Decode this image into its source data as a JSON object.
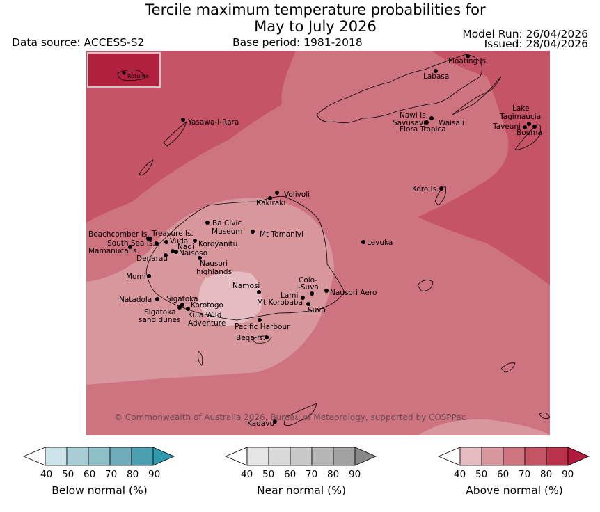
{
  "title_line1": "Tercile maximum temperature probabilities for",
  "title_line2": "May to July 2026",
  "data_source": "Data source: ACCESS-S2",
  "base_period": "Base period: 1981-2018",
  "model_run": "Model Run: 26/04/2026",
  "issued": "Issued: 28/04/2026",
  "copyright": "© Commonwealth of Australia 2026, Bureau of Meteorology, supported by COSPPac",
  "inset_label": "Rotuma",
  "places": [
    {
      "name": "Floating Is."
    },
    {
      "name": "Labasa"
    },
    {
      "name": "Yasawa-I-Rara"
    },
    {
      "name": "Nawi Is."
    },
    {
      "name": "Savusavu"
    },
    {
      "name": "Waisali"
    },
    {
      "name": "Flora Tropica"
    },
    {
      "name": "Lake"
    },
    {
      "name": "Tagimaucia"
    },
    {
      "name": "Taveuni"
    },
    {
      "name": "Bouma"
    },
    {
      "name": "Koro Is."
    },
    {
      "name": "Volivoli"
    },
    {
      "name": "Rakiraki"
    },
    {
      "name": "Ba Civic"
    },
    {
      "name": "Museum"
    },
    {
      "name": "Mt Tomanivi"
    },
    {
      "name": "Beachcomber Is."
    },
    {
      "name": "Treasure Is."
    },
    {
      "name": "South Sea Is."
    },
    {
      "name": "Vuda"
    },
    {
      "name": "Koroyanitu"
    },
    {
      "name": "Levuka"
    },
    {
      "name": "Nadi"
    },
    {
      "name": "Mamanuca Is."
    },
    {
      "name": "Naisoso"
    },
    {
      "name": "Denarau"
    },
    {
      "name": "Nausori"
    },
    {
      "name": "highlands"
    },
    {
      "name": "Momi"
    },
    {
      "name": "Namosi"
    },
    {
      "name": "Colo-"
    },
    {
      "name": "I-Suva"
    },
    {
      "name": "Lami"
    },
    {
      "name": "Nausori Aero"
    },
    {
      "name": "Natadola"
    },
    {
      "name": "Sigatoka"
    },
    {
      "name": "Mt Korobaba"
    },
    {
      "name": "Korotogo"
    },
    {
      "name": "Suva"
    },
    {
      "name": "Sigatoka"
    },
    {
      "name": "Kula Wild"
    },
    {
      "name": "sand dunes"
    },
    {
      "name": "Adventure"
    },
    {
      "name": "Pacific Harbour"
    },
    {
      "name": "Beqa Is."
    },
    {
      "name": "Kadavu"
    }
  ],
  "colorbars": [
    {
      "label": "Below normal (%)",
      "ticks": [
        "40",
        "50",
        "60",
        "70",
        "80",
        "90"
      ],
      "colors": [
        "#cde3ea",
        "#a8cdd4",
        "#8ebec6",
        "#6eacb7",
        "#4aa0b2",
        "#2f9aae"
      ]
    },
    {
      "label": "Near normal (%)",
      "ticks": [
        "40",
        "50",
        "60",
        "70",
        "80",
        "90"
      ],
      "colors": [
        "#e6e6e6",
        "#dadada",
        "#c8c8c8",
        "#b6b6b6",
        "#a2a2a2",
        "#888888"
      ]
    },
    {
      "label": "Above normal (%)",
      "ticks": [
        "40",
        "50",
        "60",
        "70",
        "80",
        "90"
      ],
      "colors": [
        "#e6bcc3",
        "#d8969d",
        "#cd7480",
        "#c45466",
        "#b8324c",
        "#b01c3c"
      ]
    }
  ]
}
